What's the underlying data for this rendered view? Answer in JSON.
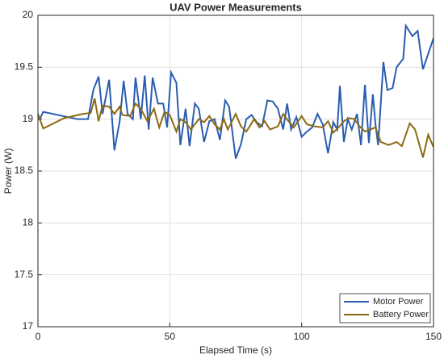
{
  "chart_data": {
    "type": "line",
    "title": "UAV Power Measurements",
    "xlabel": "Elapsed Time (s)",
    "ylabel": "Power (W)",
    "xlim": [
      0,
      150
    ],
    "xticks": [
      0,
      50,
      100,
      150
    ],
    "ylim": [
      17,
      20
    ],
    "yticks": [
      17,
      17.5,
      18,
      18.5,
      19,
      19.5,
      20
    ],
    "grid": true,
    "legend": "lower right",
    "series": [
      {
        "name": "Motor Power",
        "color": "#2a5db0",
        "x": [
          0.5,
          2,
          15,
          19,
          21,
          23,
          24.5,
          27,
          29,
          31,
          32.5,
          34,
          36,
          37,
          39,
          40.5,
          42,
          43.5,
          45.5,
          47.5,
          49,
          50.5,
          52.5,
          54,
          56,
          57.5,
          59.5,
          61,
          63,
          65,
          67,
          69,
          71,
          72.5,
          75,
          77,
          79,
          81,
          83,
          85,
          87,
          89,
          91,
          93,
          94.5,
          96,
          98,
          100,
          102,
          104,
          106,
          108,
          110,
          112,
          113.5,
          114.5,
          116,
          117.5,
          119,
          121,
          122.5,
          124,
          125.5,
          127,
          128,
          129,
          131,
          132.5,
          134.5,
          136,
          138.5,
          139.5,
          142,
          144,
          146,
          148,
          150
        ],
        "values": [
          18.99,
          19.07,
          19.0,
          19.0,
          19.28,
          19.41,
          19.05,
          19.38,
          18.7,
          18.98,
          19.37,
          19.05,
          19.0,
          19.4,
          19.0,
          19.42,
          18.9,
          19.4,
          19.15,
          19.15,
          18.92,
          19.45,
          19.35,
          18.75,
          19.1,
          18.74,
          19.15,
          19.1,
          18.78,
          18.98,
          19.0,
          18.8,
          19.18,
          19.12,
          18.62,
          18.76,
          19.0,
          19.04,
          18.97,
          18.93,
          19.18,
          19.17,
          19.1,
          18.9,
          19.15,
          18.9,
          19.02,
          18.83,
          18.88,
          18.92,
          19.05,
          18.95,
          18.67,
          18.97,
          18.9,
          19.32,
          18.78,
          19.0,
          18.9,
          19.05,
          18.75,
          19.33,
          18.77,
          19.24,
          18.95,
          18.75,
          19.55,
          19.28,
          19.3,
          19.5,
          19.58,
          19.9,
          19.8,
          19.85,
          19.48,
          19.63,
          19.78
        ]
      },
      {
        "name": "Battery Power",
        "color": "#8c6a12",
        "x": [
          0,
          2,
          10,
          17,
          20,
          21.5,
          23,
          24.5,
          27,
          29,
          31,
          32,
          35,
          37,
          39,
          41.5,
          44,
          46,
          48,
          50,
          52.5,
          54,
          56,
          58,
          61,
          63,
          65,
          67,
          69,
          70.5,
          72,
          75,
          77,
          79,
          82,
          84,
          86,
          88,
          91,
          93,
          95,
          97,
          100,
          102,
          105,
          108,
          110,
          112,
          114,
          116,
          118,
          120,
          122,
          124,
          126,
          128,
          130,
          133,
          136,
          138,
          141,
          143,
          146,
          148,
          150
        ],
        "values": [
          19.05,
          18.91,
          19.01,
          19.05,
          19.06,
          19.2,
          18.98,
          19.13,
          19.12,
          19.05,
          19.12,
          19.04,
          19.03,
          19.15,
          19.1,
          18.98,
          19.1,
          18.92,
          19.07,
          19.04,
          18.88,
          19.0,
          18.97,
          18.9,
          19.0,
          18.97,
          19.03,
          18.95,
          18.9,
          19.0,
          18.9,
          19.05,
          18.93,
          18.88,
          19.0,
          18.92,
          18.98,
          18.9,
          18.93,
          19.05,
          18.98,
          18.92,
          19.03,
          18.95,
          18.93,
          18.92,
          18.98,
          18.87,
          18.92,
          18.98,
          19.01,
          19.0,
          18.93,
          18.88,
          18.9,
          18.92,
          18.78,
          18.75,
          18.78,
          18.74,
          18.96,
          18.9,
          18.63,
          18.85,
          18.73
        ]
      }
    ]
  }
}
